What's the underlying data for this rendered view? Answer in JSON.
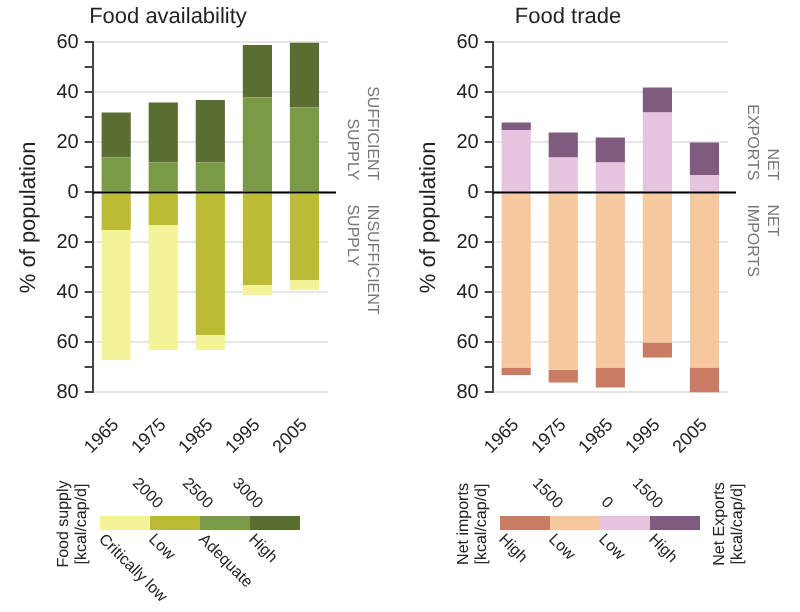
{
  "chart_data": [
    {
      "type": "bar",
      "title": "Food availability",
      "ylabel": "% of population",
      "categories": [
        "1965",
        "1975",
        "1985",
        "1995",
        "2005"
      ],
      "stacked": true,
      "series": [
        {
          "name": "Low",
          "color": "#bcbc34",
          "values": [
            -15,
            -13,
            -57,
            -37,
            -35
          ]
        },
        {
          "name": "Critically low",
          "color": "#f5f39a",
          "values": [
            -52,
            -50,
            -6,
            -4,
            -4
          ]
        },
        {
          "name": "Adequate",
          "color": "#7b9a45",
          "values": [
            14,
            12,
            12,
            38,
            34
          ]
        },
        {
          "name": "High",
          "color": "#5b6e31",
          "values": [
            18,
            24,
            25,
            21,
            26
          ]
        }
      ],
      "ylim": [
        -80,
        60
      ],
      "yticks": [
        60,
        {
          "value": 50,
          "label": null
        },
        40,
        {
          "value": 30,
          "label": null
        },
        20,
        {
          "value": 10,
          "label": null
        },
        0,
        {
          "value": -10,
          "label": null
        },
        {
          "value": -20,
          "label": "20"
        },
        {
          "value": -30,
          "label": null
        },
        {
          "value": -40,
          "label": "40"
        },
        {
          "value": -50,
          "label": null
        },
        {
          "value": -60,
          "label": "60"
        },
        {
          "value": -70,
          "label": null
        },
        {
          "value": -80,
          "label": "80"
        }
      ],
      "grid": "y",
      "legend": "bottom",
      "legend_title": "Food supply [kcal/cap/d]",
      "ref_lines": [
        {
          "axis": "y",
          "value": 0,
          "color": "#000000"
        }
      ],
      "annotations": [
        "SUFFICIENT SUPPLY",
        "INSUFFICIENT SUPPLY",
        "2000",
        "2500",
        "3000"
      ]
    },
    {
      "type": "bar",
      "title": "Food trade",
      "ylabel": "% of population",
      "categories": [
        "1965",
        "1975",
        "1985",
        "1995",
        "2005"
      ],
      "stacked": true,
      "series": [
        {
          "name": "Low",
          "color": "#f5c99d",
          "values": [
            -70,
            -71,
            -70,
            -60,
            -70
          ]
        },
        {
          "name": "High",
          "color": "#c97c63",
          "values": [
            -3,
            -5,
            -8,
            -6,
            -10
          ]
        },
        {
          "name": "Low",
          "color": "#e6c4e0",
          "values": [
            25,
            14,
            12,
            32,
            7
          ]
        },
        {
          "name": "High",
          "color": "#7f5b80",
          "values": [
            3,
            10,
            10,
            10,
            13
          ]
        }
      ],
      "ylim": [
        -80,
        60
      ],
      "yticks": [
        60,
        {
          "value": 50,
          "label": null
        },
        40,
        {
          "value": 30,
          "label": null
        },
        20,
        {
          "value": 10,
          "label": null
        },
        0,
        {
          "value": -10,
          "label": null
        },
        {
          "value": -20,
          "label": "20"
        },
        {
          "value": -30,
          "label": null
        },
        {
          "value": -40,
          "label": "40"
        },
        {
          "value": -50,
          "label": null
        },
        {
          "value": -60,
          "label": "60"
        },
        {
          "value": -70,
          "label": null
        },
        {
          "value": -80,
          "label": "80"
        }
      ],
      "grid": "y",
      "legend": "bottom",
      "legend_title": "Net imports [kcal/cap/d]",
      "ref_lines": [
        {
          "axis": "y",
          "value": 0,
          "color": "#000000"
        }
      ],
      "annotations": [
        "NET EXPORTS",
        "NET IMPORTS",
        "Net Exports [kcal/cap/d]",
        "1500",
        "0",
        "1500"
      ]
    }
  ]
}
